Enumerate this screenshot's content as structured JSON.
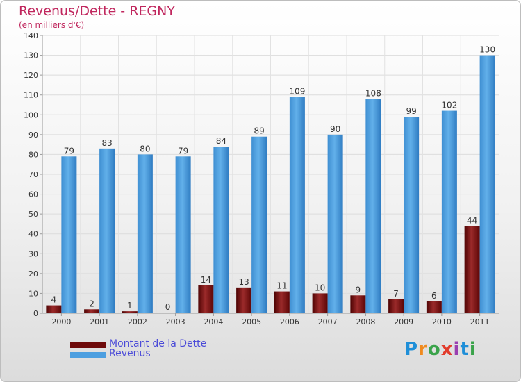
{
  "title": "Revenus/Dette - REGNY",
  "subtitle": "(en milliers d'€)",
  "colors": {
    "title": "#c0265d",
    "dette": "#7a0f0f",
    "revenus": "#4d9fe0",
    "legend_text": "#4a4ad8"
  },
  "legend": [
    {
      "label": "Montant de la Dette",
      "color": "#6e0a0a"
    },
    {
      "label": "Revenus",
      "color": "#4d9fe0"
    }
  ],
  "brand": {
    "text": "Proxiti",
    "letter_colors": [
      "#1f8fd8",
      "#f08a1e",
      "#3aa34a",
      "#e23c2c",
      "#9a3fb0",
      "#1f8fd8",
      "#3aa34a"
    ]
  },
  "chart_data": {
    "type": "bar",
    "title": "Revenus/Dette - REGNY",
    "ylabel": "(en milliers d'€)",
    "categories": [
      "2000",
      "2001",
      "2002",
      "2003",
      "2004",
      "2005",
      "2006",
      "2007",
      "2008",
      "2009",
      "2010",
      "2011"
    ],
    "series": [
      {
        "name": "Montant de la Dette",
        "values": [
          4,
          2,
          1,
          0,
          14,
          13,
          11,
          10,
          9,
          7,
          6,
          44
        ]
      },
      {
        "name": "Revenus",
        "values": [
          79,
          83,
          80,
          79,
          84,
          89,
          109,
          90,
          108,
          99,
          102,
          130
        ]
      }
    ],
    "ylim": [
      0,
      140
    ],
    "yticks": [
      0,
      10,
      20,
      30,
      40,
      50,
      60,
      70,
      80,
      90,
      100,
      110,
      120,
      130,
      140
    ],
    "grid": true,
    "legend_position": "bottom-left"
  }
}
